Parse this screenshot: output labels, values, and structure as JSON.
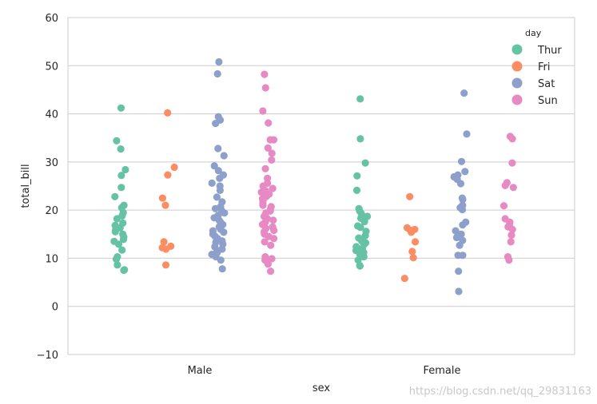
{
  "chart_data": {
    "type": "scatter",
    "subtype": "strip",
    "xlabel": "sex",
    "ylabel": "total_bill",
    "ylim": [
      -10,
      60
    ],
    "yticks": [
      -10,
      0,
      10,
      20,
      30,
      40,
      50,
      60
    ],
    "categories": [
      "Male",
      "Female"
    ],
    "grid": true,
    "legend": {
      "title": "day",
      "placement": "top-right"
    },
    "series": [
      {
        "name": "Thur",
        "color": "#66c2a5",
        "values": {
          "Male": [
            41.2,
            34.4,
            32.7,
            28.4,
            27.2,
            24.7,
            22.8,
            21.0,
            20.5,
            19.5,
            18.8,
            18.2,
            17.3,
            16.8,
            16.3,
            15.9,
            15.5,
            15.0,
            14.4,
            13.9,
            13.5,
            12.9,
            11.7,
            10.3,
            9.8,
            8.6,
            7.6,
            7.5
          ],
          "Female": [
            43.1,
            34.8,
            29.8,
            27.1,
            24.1,
            20.3,
            19.8,
            19.3,
            18.7,
            18.3,
            17.6,
            16.7,
            16.4,
            15.6,
            14.7,
            14.2,
            13.6,
            13.2,
            12.8,
            12.4,
            12.0,
            11.6,
            11.2,
            10.8,
            10.3,
            9.6,
            8.5,
            8.4
          ]
        }
      },
      {
        "name": "Fri",
        "color": "#fc8d62",
        "values": {
          "Male": [
            40.2,
            28.9,
            27.3,
            22.5,
            21.0,
            13.4,
            12.5,
            12.2,
            11.9,
            8.6
          ],
          "Female": [
            22.8,
            16.3,
            16.0,
            15.8,
            15.4,
            13.4,
            11.4,
            10.1,
            5.8
          ]
        }
      },
      {
        "name": "Sat",
        "color": "#8da0cb",
        "values": {
          "Male": [
            50.8,
            48.3,
            39.4,
            38.7,
            38.0,
            32.8,
            31.3,
            29.2,
            28.2,
            27.3,
            26.6,
            25.6,
            25.0,
            24.1,
            22.7,
            21.7,
            20.7,
            20.3,
            19.8,
            19.4,
            18.9,
            18.4,
            17.9,
            17.5,
            17.0,
            16.5,
            16.0,
            15.7,
            15.4,
            15.0,
            14.6,
            14.1,
            13.6,
            13.3,
            12.9,
            12.4,
            11.9,
            11.6,
            11.2,
            10.8,
            10.3,
            9.6,
            7.8
          ],
          "Female": [
            44.3,
            35.8,
            30.1,
            28.0,
            27.3,
            26.9,
            26.4,
            25.5,
            22.5,
            22.2,
            21.0,
            20.5,
            20.1,
            17.5,
            16.9,
            15.7,
            15.0,
            14.3,
            13.7,
            12.7,
            10.6,
            10.6,
            7.3,
            3.1
          ]
        }
      },
      {
        "name": "Sun",
        "color": "#e78ac3",
        "values": {
          "Male": [
            48.2,
            45.4,
            40.6,
            38.1,
            34.6,
            34.6,
            32.9,
            31.8,
            30.4,
            28.6,
            26.6,
            25.6,
            25.0,
            24.5,
            24.0,
            23.7,
            23.3,
            22.8,
            22.4,
            21.9,
            21.5,
            21.0,
            20.7,
            20.2,
            19.8,
            19.4,
            18.7,
            18.2,
            17.9,
            17.5,
            17.0,
            16.5,
            16.2,
            15.8,
            15.5,
            15.0,
            14.5,
            14.1,
            13.4,
            12.7,
            10.3,
            9.9,
            9.6,
            8.8,
            7.3
          ],
          "Female": [
            35.3,
            34.8,
            29.8,
            25.7,
            25.1,
            24.7,
            20.9,
            18.2,
            17.5,
            16.9,
            16.5,
            16.0,
            14.8,
            13.4,
            10.3,
            9.6
          ]
        }
      }
    ]
  },
  "watermark": "https://blog.csdn.net/qq_29831163"
}
